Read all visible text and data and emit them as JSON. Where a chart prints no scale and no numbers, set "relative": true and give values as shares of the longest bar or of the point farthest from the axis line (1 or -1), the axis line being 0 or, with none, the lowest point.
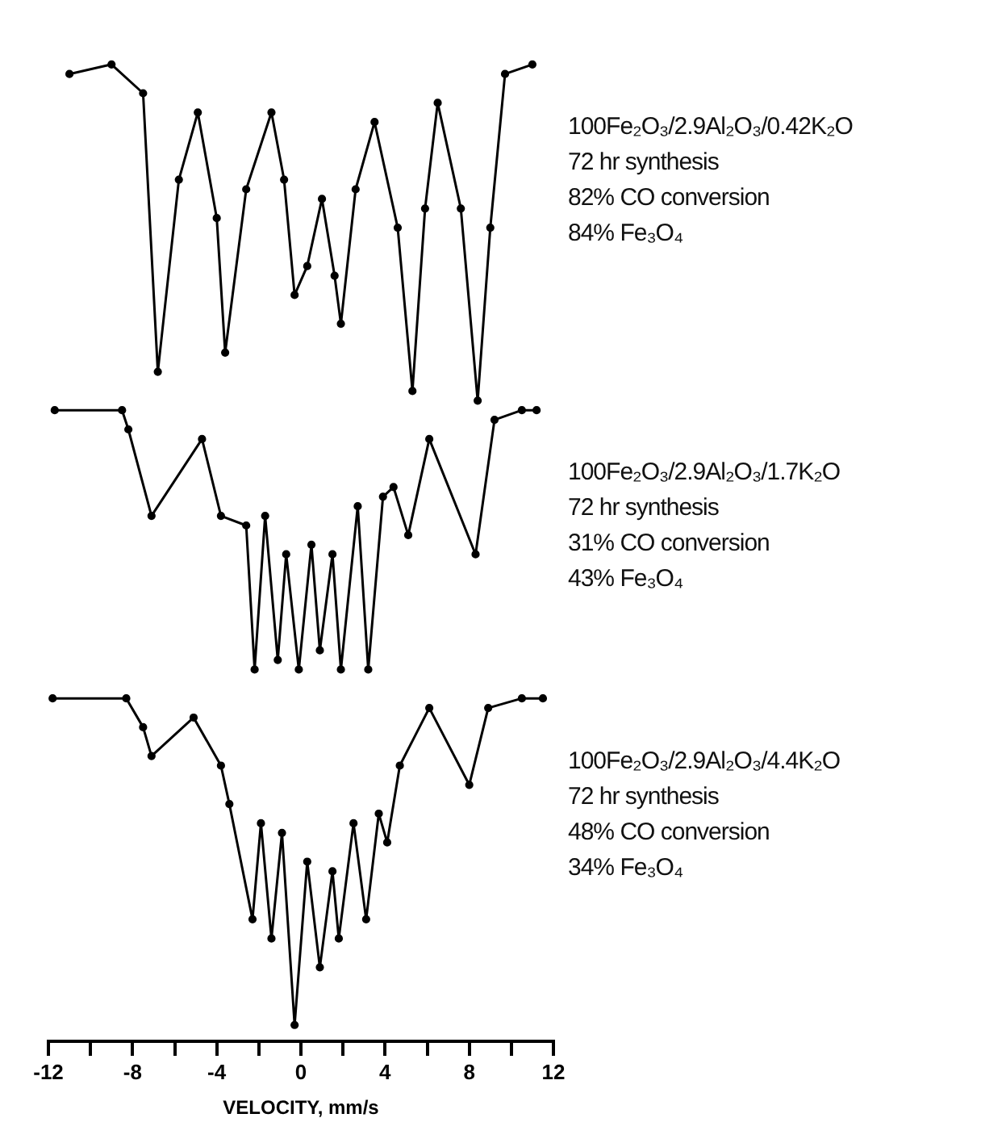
{
  "chart_data": {
    "type": "line",
    "relative": true,
    "xlabel": "VELOCITY, mm/s",
    "xlim": [
      -12,
      12
    ],
    "xticks": [
      -12,
      {
        "value": -10,
        "label": null
      },
      -8,
      {
        "value": -6,
        "label": null
      },
      -4,
      {
        "value": -2,
        "label": null
      },
      0,
      {
        "value": 2,
        "label": null
      },
      4,
      {
        "value": 6,
        "label": null
      },
      8,
      {
        "value": 10,
        "label": null
      },
      12
    ],
    "grid": false,
    "legend": false,
    "marker": "circle",
    "line_style": "solid",
    "series": [
      {
        "color": "#000000",
        "x": [
          -11,
          -9,
          -7.5,
          -6.8,
          -5.8,
          -4.9,
          -4.0,
          -3.6,
          -2.6,
          -1.4,
          -0.8,
          -0.3,
          0.3,
          1.0,
          1.6,
          1.9,
          2.6,
          3.5,
          4.6,
          5.3,
          5.9,
          6.5,
          7.6,
          8.4,
          9.0,
          9.7,
          11
        ],
        "values": [
          0.99,
          1.0,
          0.97,
          0.68,
          0.88,
          0.95,
          0.84,
          0.7,
          0.87,
          0.95,
          0.88,
          0.76,
          0.79,
          0.86,
          0.78,
          0.73,
          0.87,
          0.94,
          0.83,
          0.66,
          0.85,
          0.96,
          0.85,
          0.65,
          0.83,
          0.99,
          1.0
        ]
      },
      {
        "color": "#000000",
        "x": [
          -11.7,
          -8.5,
          -8.2,
          -7.1,
          -4.7,
          -3.8,
          -2.6,
          -2.2,
          -1.7,
          -1.1,
          -0.7,
          -0.1,
          0.5,
          0.9,
          1.5,
          1.9,
          2.7,
          3.2,
          3.9,
          4.4,
          5.1,
          6.1,
          8.3,
          9.2,
          10.5,
          11.2
        ],
        "values": [
          0.64,
          0.64,
          0.62,
          0.53,
          0.61,
          0.53,
          0.52,
          0.37,
          0.53,
          0.38,
          0.49,
          0.37,
          0.5,
          0.39,
          0.49,
          0.37,
          0.54,
          0.37,
          0.55,
          0.56,
          0.51,
          0.61,
          0.49,
          0.63,
          0.64,
          0.64
        ]
      },
      {
        "color": "#000000",
        "x": [
          -11.8,
          -8.3,
          -7.5,
          -7.1,
          -5.1,
          -3.8,
          -3.4,
          -2.3,
          -1.9,
          -1.4,
          -0.9,
          -0.3,
          0.3,
          0.9,
          1.5,
          1.8,
          2.5,
          3.1,
          3.7,
          4.1,
          4.7,
          6.1,
          8.0,
          8.9,
          10.5,
          11.5
        ],
        "values": [
          0.34,
          0.34,
          0.31,
          0.28,
          0.32,
          0.27,
          0.23,
          0.11,
          0.21,
          0.09,
          0.2,
          0.0,
          0.17,
          0.06,
          0.16,
          0.09,
          0.21,
          0.11,
          0.22,
          0.19,
          0.27,
          0.33,
          0.25,
          0.33,
          0.34,
          0.34
        ]
      }
    ],
    "annotations": [
      "100Fe₂O₃/2.9Al₂O₃/0.42K₂O\n72 hr synthesis\n82% CO conversion\n84% Fe₃O₄",
      "100Fe₂O₃/2.9Al₂O₃/1.7K₂O\n72 hr synthesis\n31% CO conversion\n43% Fe₃O₄",
      "100Fe₂O₃/2.9Al₂O₃/4.4K₂O\n72 hr synthesis\n48% CO conversion\n34% Fe₃O₄"
    ]
  }
}
